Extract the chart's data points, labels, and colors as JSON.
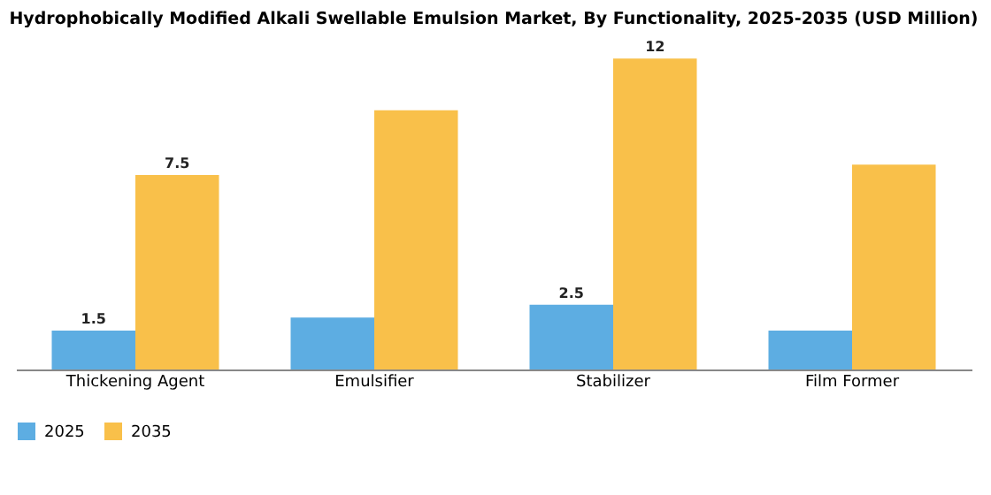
{
  "chart_data": {
    "type": "bar",
    "title": "Hydrophobically Modified Alkali Swellable Emulsion Market, By Functionality, 2025-2035 (USD Million)",
    "categories": [
      "Thickening Agent",
      "Emulsifier",
      "Stabilizer",
      "Film Former"
    ],
    "series": [
      {
        "name": "2025",
        "color": "#5dade2",
        "values": [
          1.5,
          2.0,
          2.5,
          1.5
        ],
        "value_labels": [
          "1.5",
          null,
          "2.5",
          null
        ]
      },
      {
        "name": "2035",
        "color": "#f9c04a",
        "values": [
          7.5,
          10.0,
          12.0,
          7.9
        ],
        "value_labels": [
          "7.5",
          null,
          "12",
          null
        ]
      }
    ],
    "legend": "bottom",
    "grid": false,
    "tick_labels": "x"
  }
}
